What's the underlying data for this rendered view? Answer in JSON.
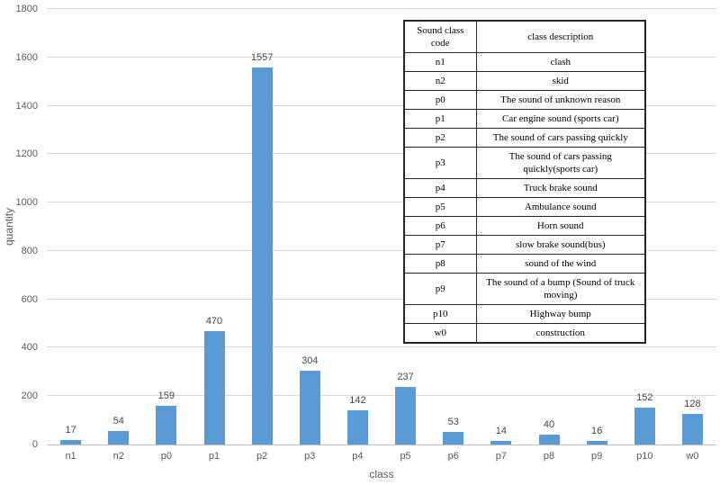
{
  "chart_data": {
    "type": "bar",
    "title": "",
    "xlabel": "class",
    "ylabel": "quantity",
    "categories": [
      "n1",
      "n2",
      "p0",
      "p1",
      "p2",
      "p3",
      "p4",
      "p5",
      "p6",
      "p7",
      "p8",
      "p9",
      "p10",
      "w0"
    ],
    "values": [
      17,
      54,
      159,
      470,
      1557,
      304,
      142,
      237,
      53,
      14,
      40,
      16,
      152,
      128
    ],
    "ylim": [
      0,
      1800
    ],
    "ytick_step": 200,
    "grid": true,
    "legend_position": "none",
    "value_labels": true
  },
  "legend_table": {
    "headers": [
      "Sound class code",
      "class description"
    ],
    "rows": [
      [
        "n1",
        "clash"
      ],
      [
        "n2",
        "skid"
      ],
      [
        "p0",
        "The sound of unknown reason"
      ],
      [
        "p1",
        "Car engine sound (sports car)"
      ],
      [
        "p2",
        "The sound of cars passing quickly"
      ],
      [
        "p3",
        "The sound of cars passing quickly(sports car)"
      ],
      [
        "p4",
        "Truck brake sound"
      ],
      [
        "p5",
        "Ambulance sound"
      ],
      [
        "p6",
        "Horn sound"
      ],
      [
        "p7",
        "slow brake sound(bus)"
      ],
      [
        "p8",
        "sound of the wind"
      ],
      [
        "p9",
        "The sound of a bump (Sound of truck moving)"
      ],
      [
        "p10",
        "Highway bump"
      ],
      [
        "w0",
        "construction"
      ]
    ]
  },
  "colors": {
    "bar": "#5b9bd5",
    "gridline": "#d9d9d9",
    "axis_line": "#bfbfbf",
    "tick_text": "#595959",
    "value_text": "#444444",
    "table_border": "#262626"
  }
}
